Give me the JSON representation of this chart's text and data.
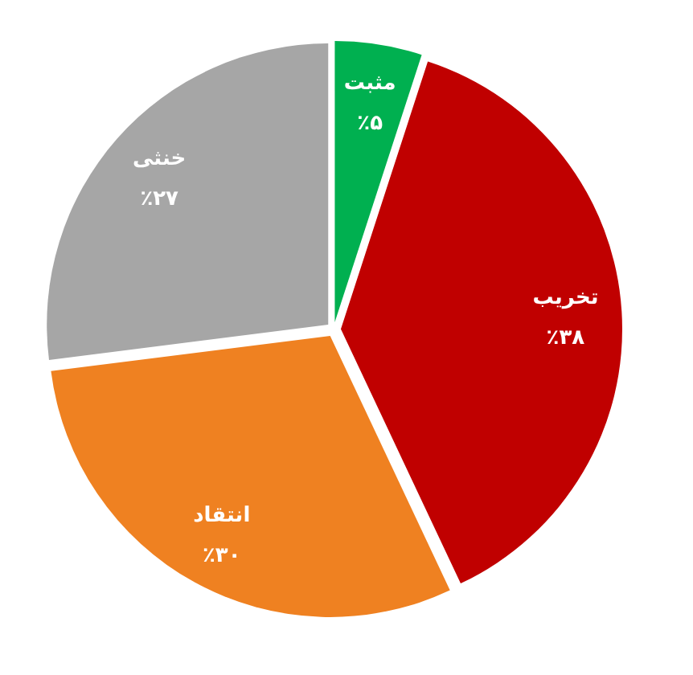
{
  "chart_data": {
    "type": "pie",
    "categories": [
      "مثبت",
      "تخریب",
      "انتقاد",
      "خنثی"
    ],
    "values": [
      5,
      38,
      30,
      27
    ],
    "value_labels": [
      "٪۵",
      "٪۳۸",
      "٪۳۰",
      "٪۲۷"
    ],
    "colors": [
      "#00b050",
      "#c00000",
      "#ef8121",
      "#a6a6a6"
    ]
  }
}
